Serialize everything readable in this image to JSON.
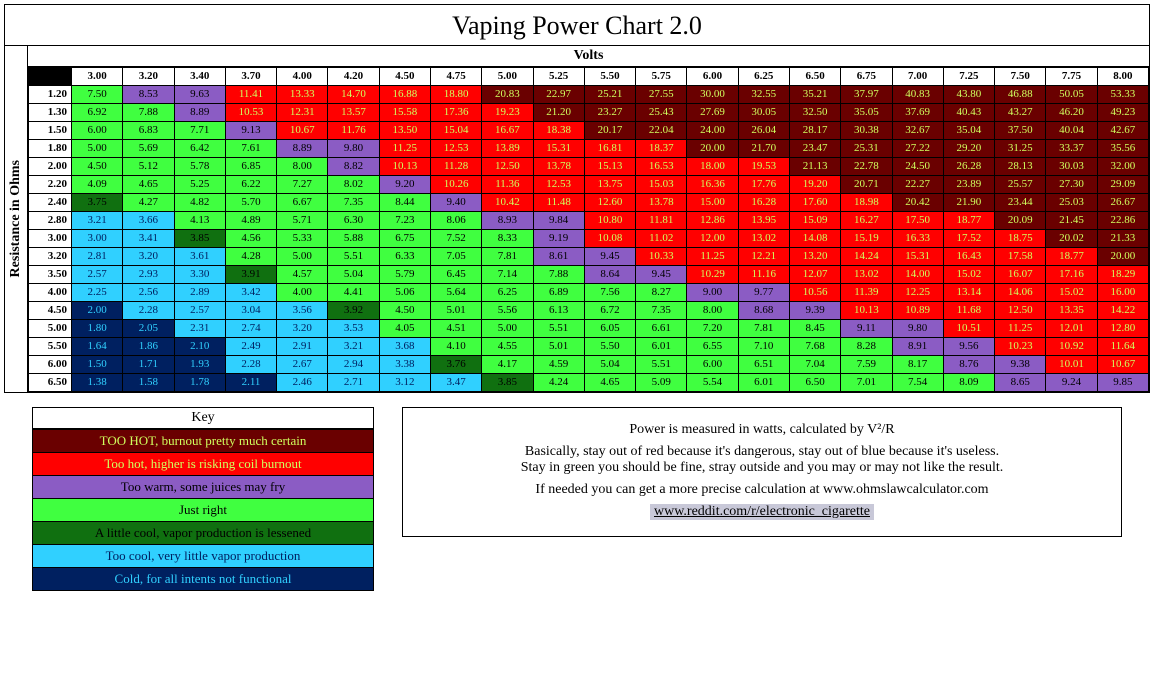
{
  "title": "Vaping Power Chart 2.0",
  "xlabel": "Volts",
  "ylabel": "Resistance in Ohms",
  "volts": [
    3.0,
    3.2,
    3.4,
    3.7,
    4.0,
    4.2,
    4.5,
    4.75,
    5.0,
    5.25,
    5.5,
    5.75,
    6.0,
    6.25,
    6.5,
    6.75,
    7.0,
    7.25,
    7.5,
    7.75,
    8.0
  ],
  "ohms": [
    1.2,
    1.3,
    1.5,
    1.8,
    2.0,
    2.2,
    2.4,
    2.8,
    3.0,
    3.2,
    3.5,
    4.0,
    4.5,
    5.0,
    5.5,
    6.0,
    6.5
  ],
  "bands": [
    {
      "max": 2.24,
      "cls": "b6"
    },
    {
      "max": 3.74,
      "cls": "b5"
    },
    {
      "max": 3.99,
      "cls": "b4"
    },
    {
      "max": 8.49,
      "cls": "b3"
    },
    {
      "max": 9.99,
      "cls": "b2"
    },
    {
      "max": 19.99,
      "cls": "b1"
    },
    {
      "max": 9999,
      "cls": "b0"
    }
  ],
  "colors": {
    "b0_bg": "#6a0000",
    "b0_fg": "#d0ff5e",
    "b1_bg": "#ff0000",
    "b1_fg": "#d0ff5e",
    "b2_bg": "#8b5cc4",
    "b2_fg": "#000000",
    "b3_bg": "#40ff40",
    "b3_fg": "#000000",
    "b4_bg": "#107010",
    "b4_fg": "#000000",
    "b5_bg": "#30d0ff",
    "b5_fg": "#002060",
    "b6_bg": "#002060",
    "b6_fg": "#30d0ff"
  },
  "key_title": "Key",
  "key_rows": [
    {
      "cls": "b0",
      "text": "TOO HOT, burnout pretty much certain"
    },
    {
      "cls": "b1",
      "text": "Too hot, higher is risking coil burnout"
    },
    {
      "cls": "b2",
      "text": "Too warm, some juices may fry"
    },
    {
      "cls": "b3",
      "text": "Just right"
    },
    {
      "cls": "b4",
      "text": "A little cool, vapor production is lessened"
    },
    {
      "cls": "b5",
      "text": "Too cool, very little vapor production"
    },
    {
      "cls": "b6",
      "text": "Cold, for all intents not functional"
    }
  ],
  "info": {
    "line1": "Power is measured in watts, calculated by V²/R",
    "line2": "Basically, stay out of red because it's dangerous, stay out of blue because it's useless.",
    "line3": "Stay in green you should be fine, stray outside and you may or may not like the result.",
    "line4": "If needed you can get a more precise calculation at www.ohmslawcalculator.com",
    "link": "www.reddit.com/r/electronic_cigarette"
  }
}
